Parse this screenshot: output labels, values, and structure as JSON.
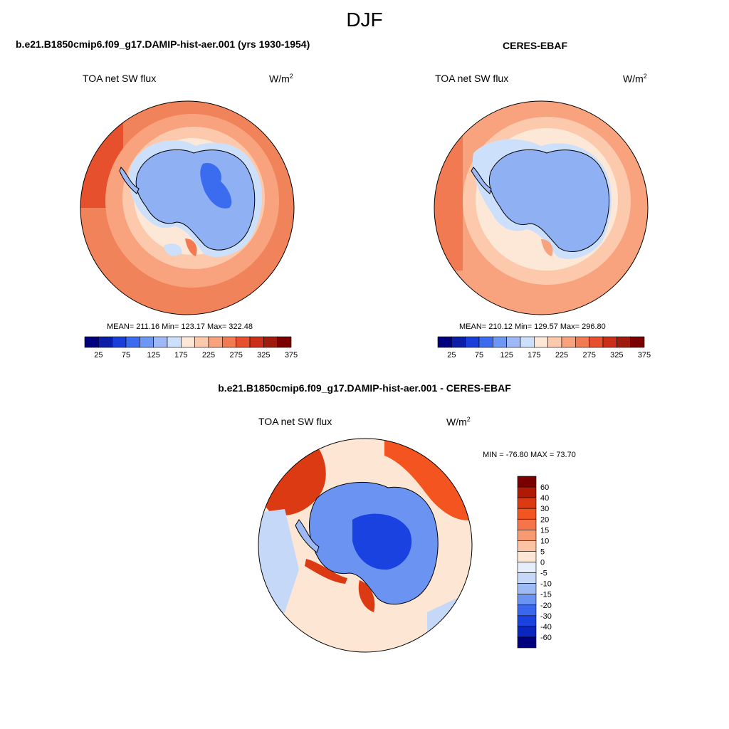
{
  "title": "DJF",
  "left_panel": {
    "heading": "b.e21.B1850cmip6.f09_g17.DAMIP-hist-aer.001 (yrs 1930-1954)",
    "variable": "TOA net SW flux",
    "units": "W/m",
    "units_sup": "2",
    "stats": "MEAN= 211.16  Min= 123.17  Max= 322.48"
  },
  "right_panel": {
    "heading": "CERES-EBAF",
    "variable": "TOA net SW flux",
    "units": "W/m",
    "units_sup": "2",
    "stats": "MEAN= 210.12  Min= 129.57  Max= 296.80"
  },
  "diff_panel": {
    "heading": "b.e21.B1850cmip6.f09_g17.DAMIP-hist-aer.001 - CERES-EBAF",
    "variable": "TOA net SW flux",
    "units": "W/m",
    "units_sup": "2",
    "stats": "MIN = -76.80 MAX =  73.70"
  },
  "colors": {
    "abs_scale": [
      "#00007f",
      "#0a1ea8",
      "#1a3fd8",
      "#3b6cf0",
      "#6d96f5",
      "#9dbaf7",
      "#cde0fb",
      "#fde8d8",
      "#fcc9ad",
      "#f9a27e",
      "#f27a52",
      "#e6502d",
      "#cc2f18",
      "#a01a0d",
      "#7a0000"
    ],
    "diff_scale": [
      "#7a0000",
      "#b01a05",
      "#dc3a12",
      "#f4541f",
      "#f6744a",
      "#f79a72",
      "#fbc3a4",
      "#fde6d4",
      "#e6eefb",
      "#c6d8f8",
      "#9dbaf5",
      "#6b93f1",
      "#3b66ee",
      "#1a42e0",
      "#0a25c0",
      "#00007f"
    ],
    "ocean_base": "#f5a47c",
    "land_base": "#8fb0f2"
  },
  "chart_data": [
    {
      "type": "heatmap",
      "projection": "south polar stereographic",
      "title": "b.e21.B1850cmip6.f09_g17.DAMIP-hist-aer.001 (yrs 1930-1954)",
      "variable": "TOA net SW flux",
      "units": "W/m2",
      "mean": 211.16,
      "min": 123.17,
      "max": 322.48,
      "colorbar_labels": [
        "25",
        "75",
        "125",
        "175",
        "225",
        "275",
        "325",
        "375"
      ],
      "levels": [
        25,
        50,
        75,
        100,
        125,
        150,
        175,
        200,
        225,
        250,
        275,
        300,
        325,
        350,
        375
      ]
    },
    {
      "type": "heatmap",
      "projection": "south polar stereographic",
      "title": "CERES-EBAF",
      "variable": "TOA net SW flux",
      "units": "W/m2",
      "mean": 210.12,
      "min": 129.57,
      "max": 296.8,
      "colorbar_labels": [
        "25",
        "75",
        "125",
        "175",
        "225",
        "275",
        "325",
        "375"
      ],
      "levels": [
        25,
        50,
        75,
        100,
        125,
        150,
        175,
        200,
        225,
        250,
        275,
        300,
        325,
        350,
        375
      ]
    },
    {
      "type": "heatmap",
      "projection": "south polar stereographic",
      "title": "b.e21.B1850cmip6.f09_g17.DAMIP-hist-aer.001 - CERES-EBAF",
      "variable": "TOA net SW flux",
      "units": "W/m2",
      "min": -76.8,
      "max": 73.7,
      "colorbar_labels": [
        "60",
        "40",
        "30",
        "20",
        "15",
        "10",
        "5",
        "0",
        "-5",
        "-10",
        "-15",
        "-20",
        "-30",
        "-40",
        "-60"
      ]
    }
  ]
}
